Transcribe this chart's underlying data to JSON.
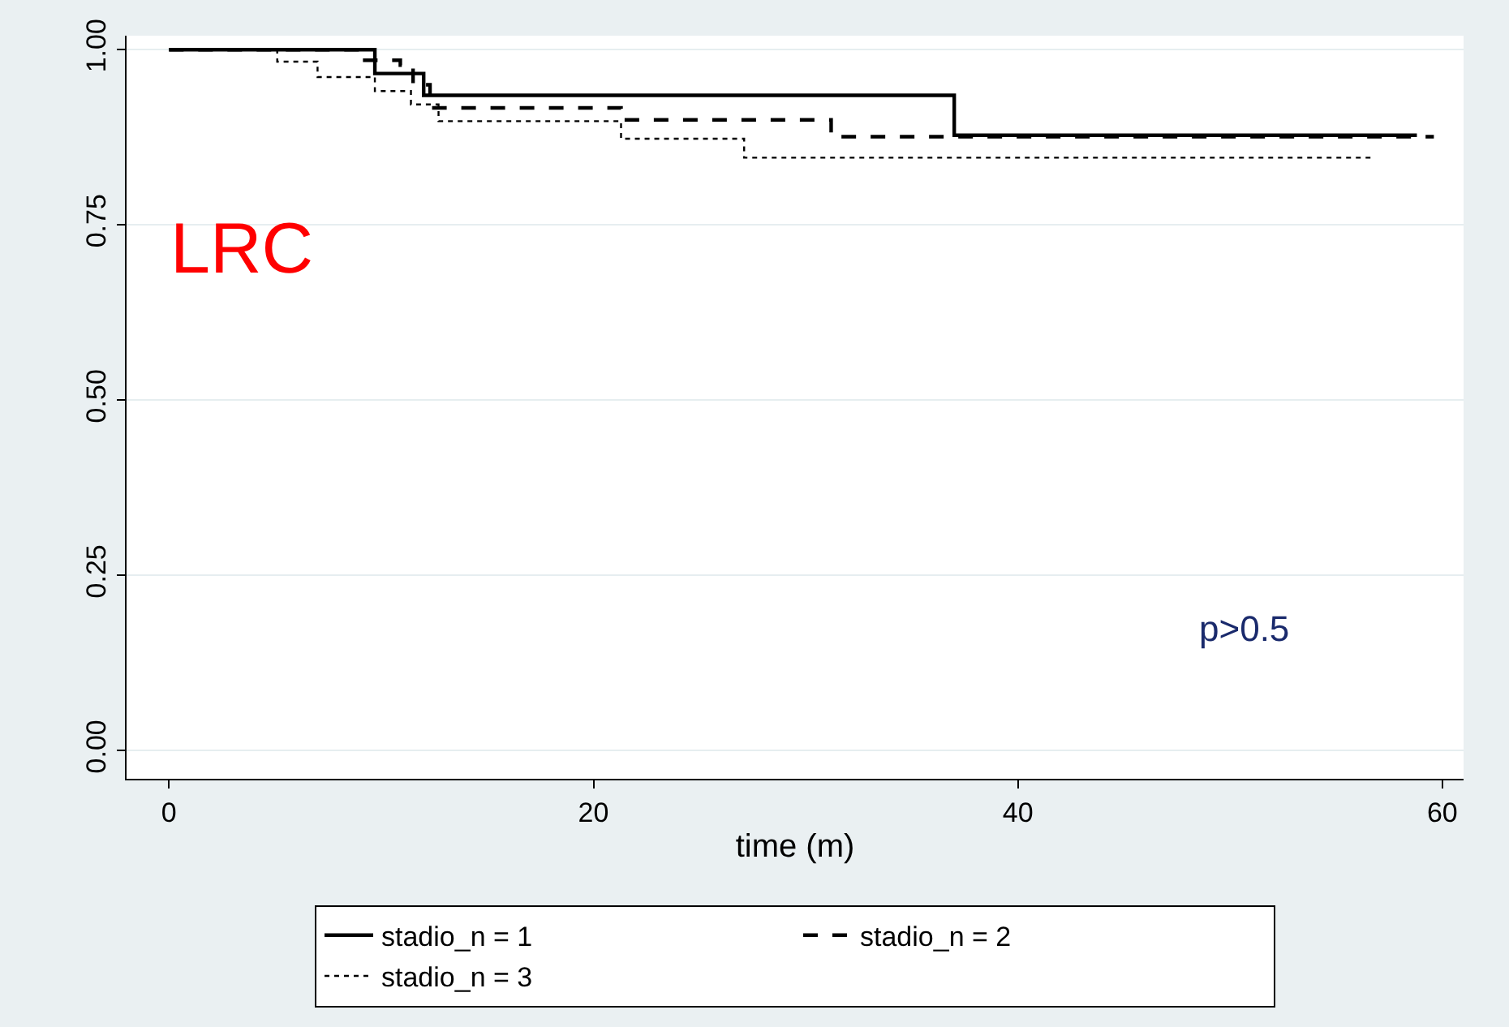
{
  "chart_data": {
    "type": "step",
    "xlabel": "time (m)",
    "xlim": [
      -2,
      61
    ],
    "xticks": [
      0,
      20,
      40,
      60
    ],
    "ylim": [
      -0.04,
      1.02
    ],
    "yticks": [
      {
        "value": 0,
        "label": "0.00"
      },
      {
        "value": 0.25,
        "label": "0.25"
      },
      {
        "value": 0.5,
        "label": "0.50"
      },
      {
        "value": 0.75,
        "label": "0.75"
      },
      {
        "value": 1,
        "label": "1.00"
      }
    ],
    "grid": "y",
    "legend": "bottom",
    "marker": "none",
    "annotations": [
      "LRC",
      "p>0.5"
    ],
    "series": [
      {
        "name": "stadio_n = 1",
        "color": "#000000",
        "line_style": "solid",
        "x": [
          0,
          9.7,
          12.0,
          37.0,
          58.8
        ],
        "values": [
          1.0,
          0.966,
          0.935,
          0.878,
          0.878
        ]
      },
      {
        "name": "stadio_n = 2",
        "color": "#000000",
        "line_style": "dashed",
        "x": [
          0,
          9.0,
          10.9,
          11.5,
          12.3,
          21.3,
          31.2,
          59.6
        ],
        "values": [
          1.0,
          0.985,
          0.978,
          0.95,
          0.917,
          0.9,
          0.876,
          0.876
        ]
      },
      {
        "name": "stadio_n = 3",
        "color": "#000000",
        "line_style": "dotted",
        "x": [
          0,
          5.1,
          7.0,
          9.7,
          11.4,
          12.7,
          21.3,
          27.1,
          56.8
        ],
        "values": [
          1.0,
          0.983,
          0.961,
          0.941,
          0.922,
          0.898,
          0.873,
          0.846,
          0.846
        ]
      }
    ]
  }
}
